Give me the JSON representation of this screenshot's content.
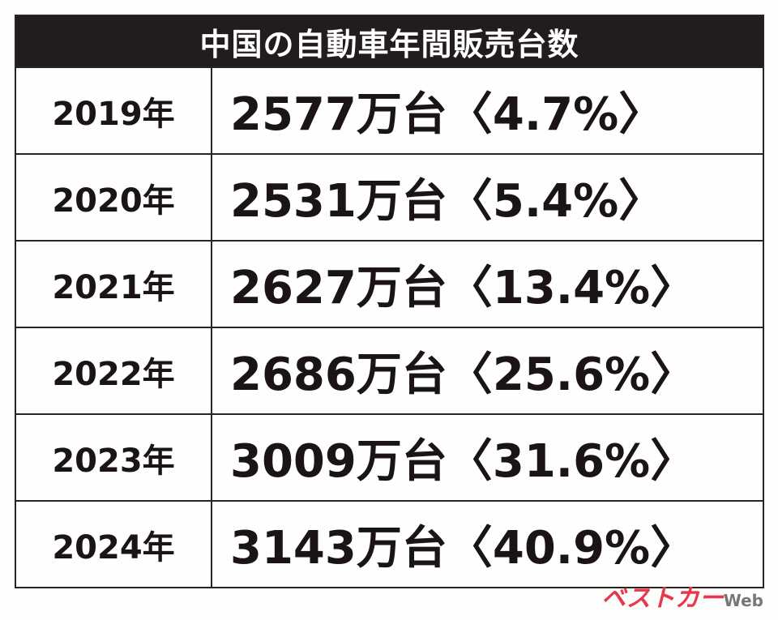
{
  "table": {
    "title": "中国の自動車年間販売台数",
    "rows": [
      [
        "2019年",
        "2577万台〈4.7%〉"
      ],
      [
        "2020年",
        "2531万台〈5.4%〉"
      ],
      [
        "2021年",
        "2627万台〈13.4%〉"
      ],
      [
        "2022年",
        "2686万台〈25.6%〉"
      ],
      [
        "2023年",
        "3009万台〈31.6%〉"
      ],
      [
        "2024年",
        "3143万台〈40.9%〉"
      ]
    ]
  },
  "watermark": {
    "brand": "ベストカー",
    "suffix": "Web"
  }
}
